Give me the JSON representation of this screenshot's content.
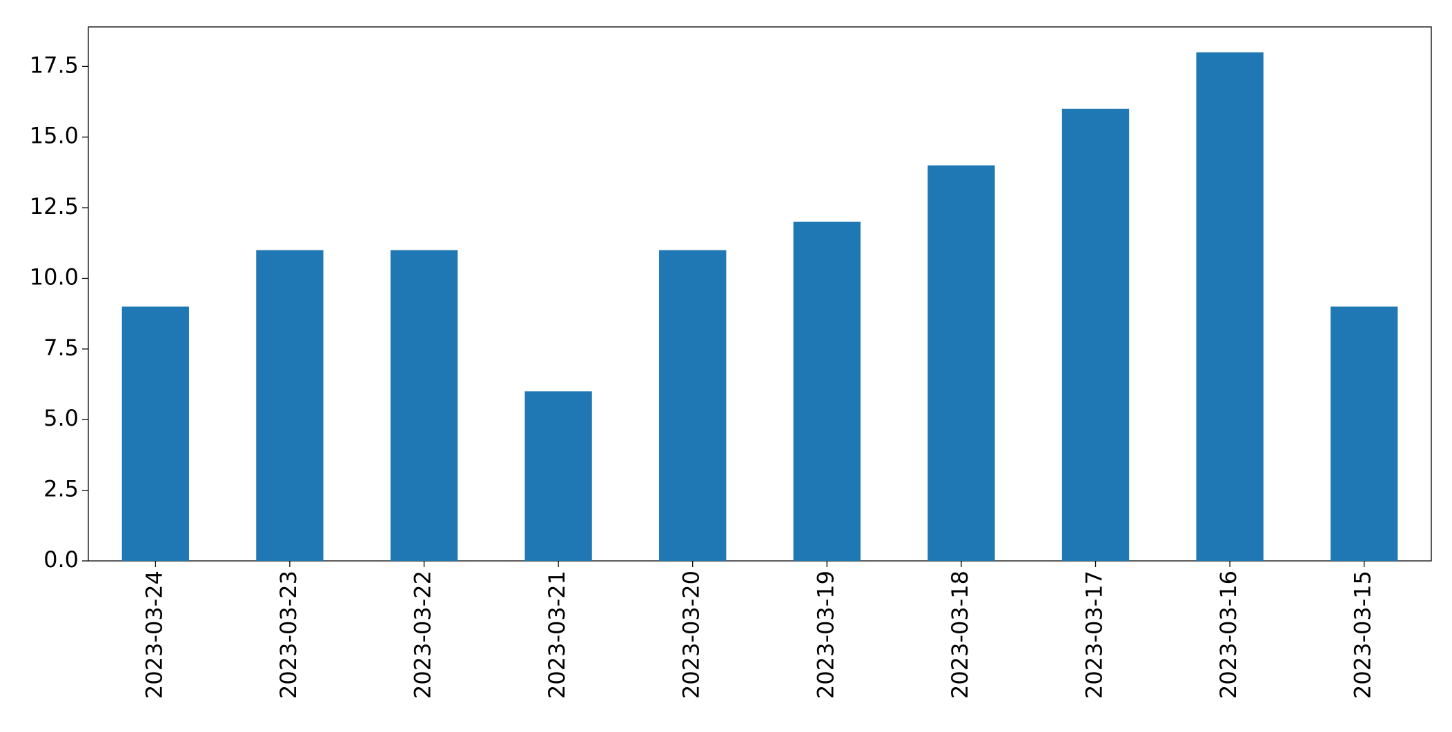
{
  "chart_data": {
    "type": "bar",
    "categories": [
      "2023-03-24",
      "2023-03-23",
      "2023-03-22",
      "2023-03-21",
      "2023-03-20",
      "2023-03-19",
      "2023-03-18",
      "2023-03-17",
      "2023-03-16",
      "2023-03-15"
    ],
    "values": [
      9,
      11,
      11,
      6,
      11,
      12,
      14,
      16,
      18,
      9
    ],
    "color": "#1f77b4",
    "ylim": [
      0,
      18.9
    ],
    "yticks": [
      {
        "value": 0,
        "label": "0.0"
      },
      2.5,
      {
        "value": 5,
        "label": "5.0"
      },
      7.5,
      {
        "value": 10,
        "label": "10.0"
      },
      12.5,
      {
        "value": 15,
        "label": "15.0"
      },
      17.5
    ],
    "grid": false
  }
}
